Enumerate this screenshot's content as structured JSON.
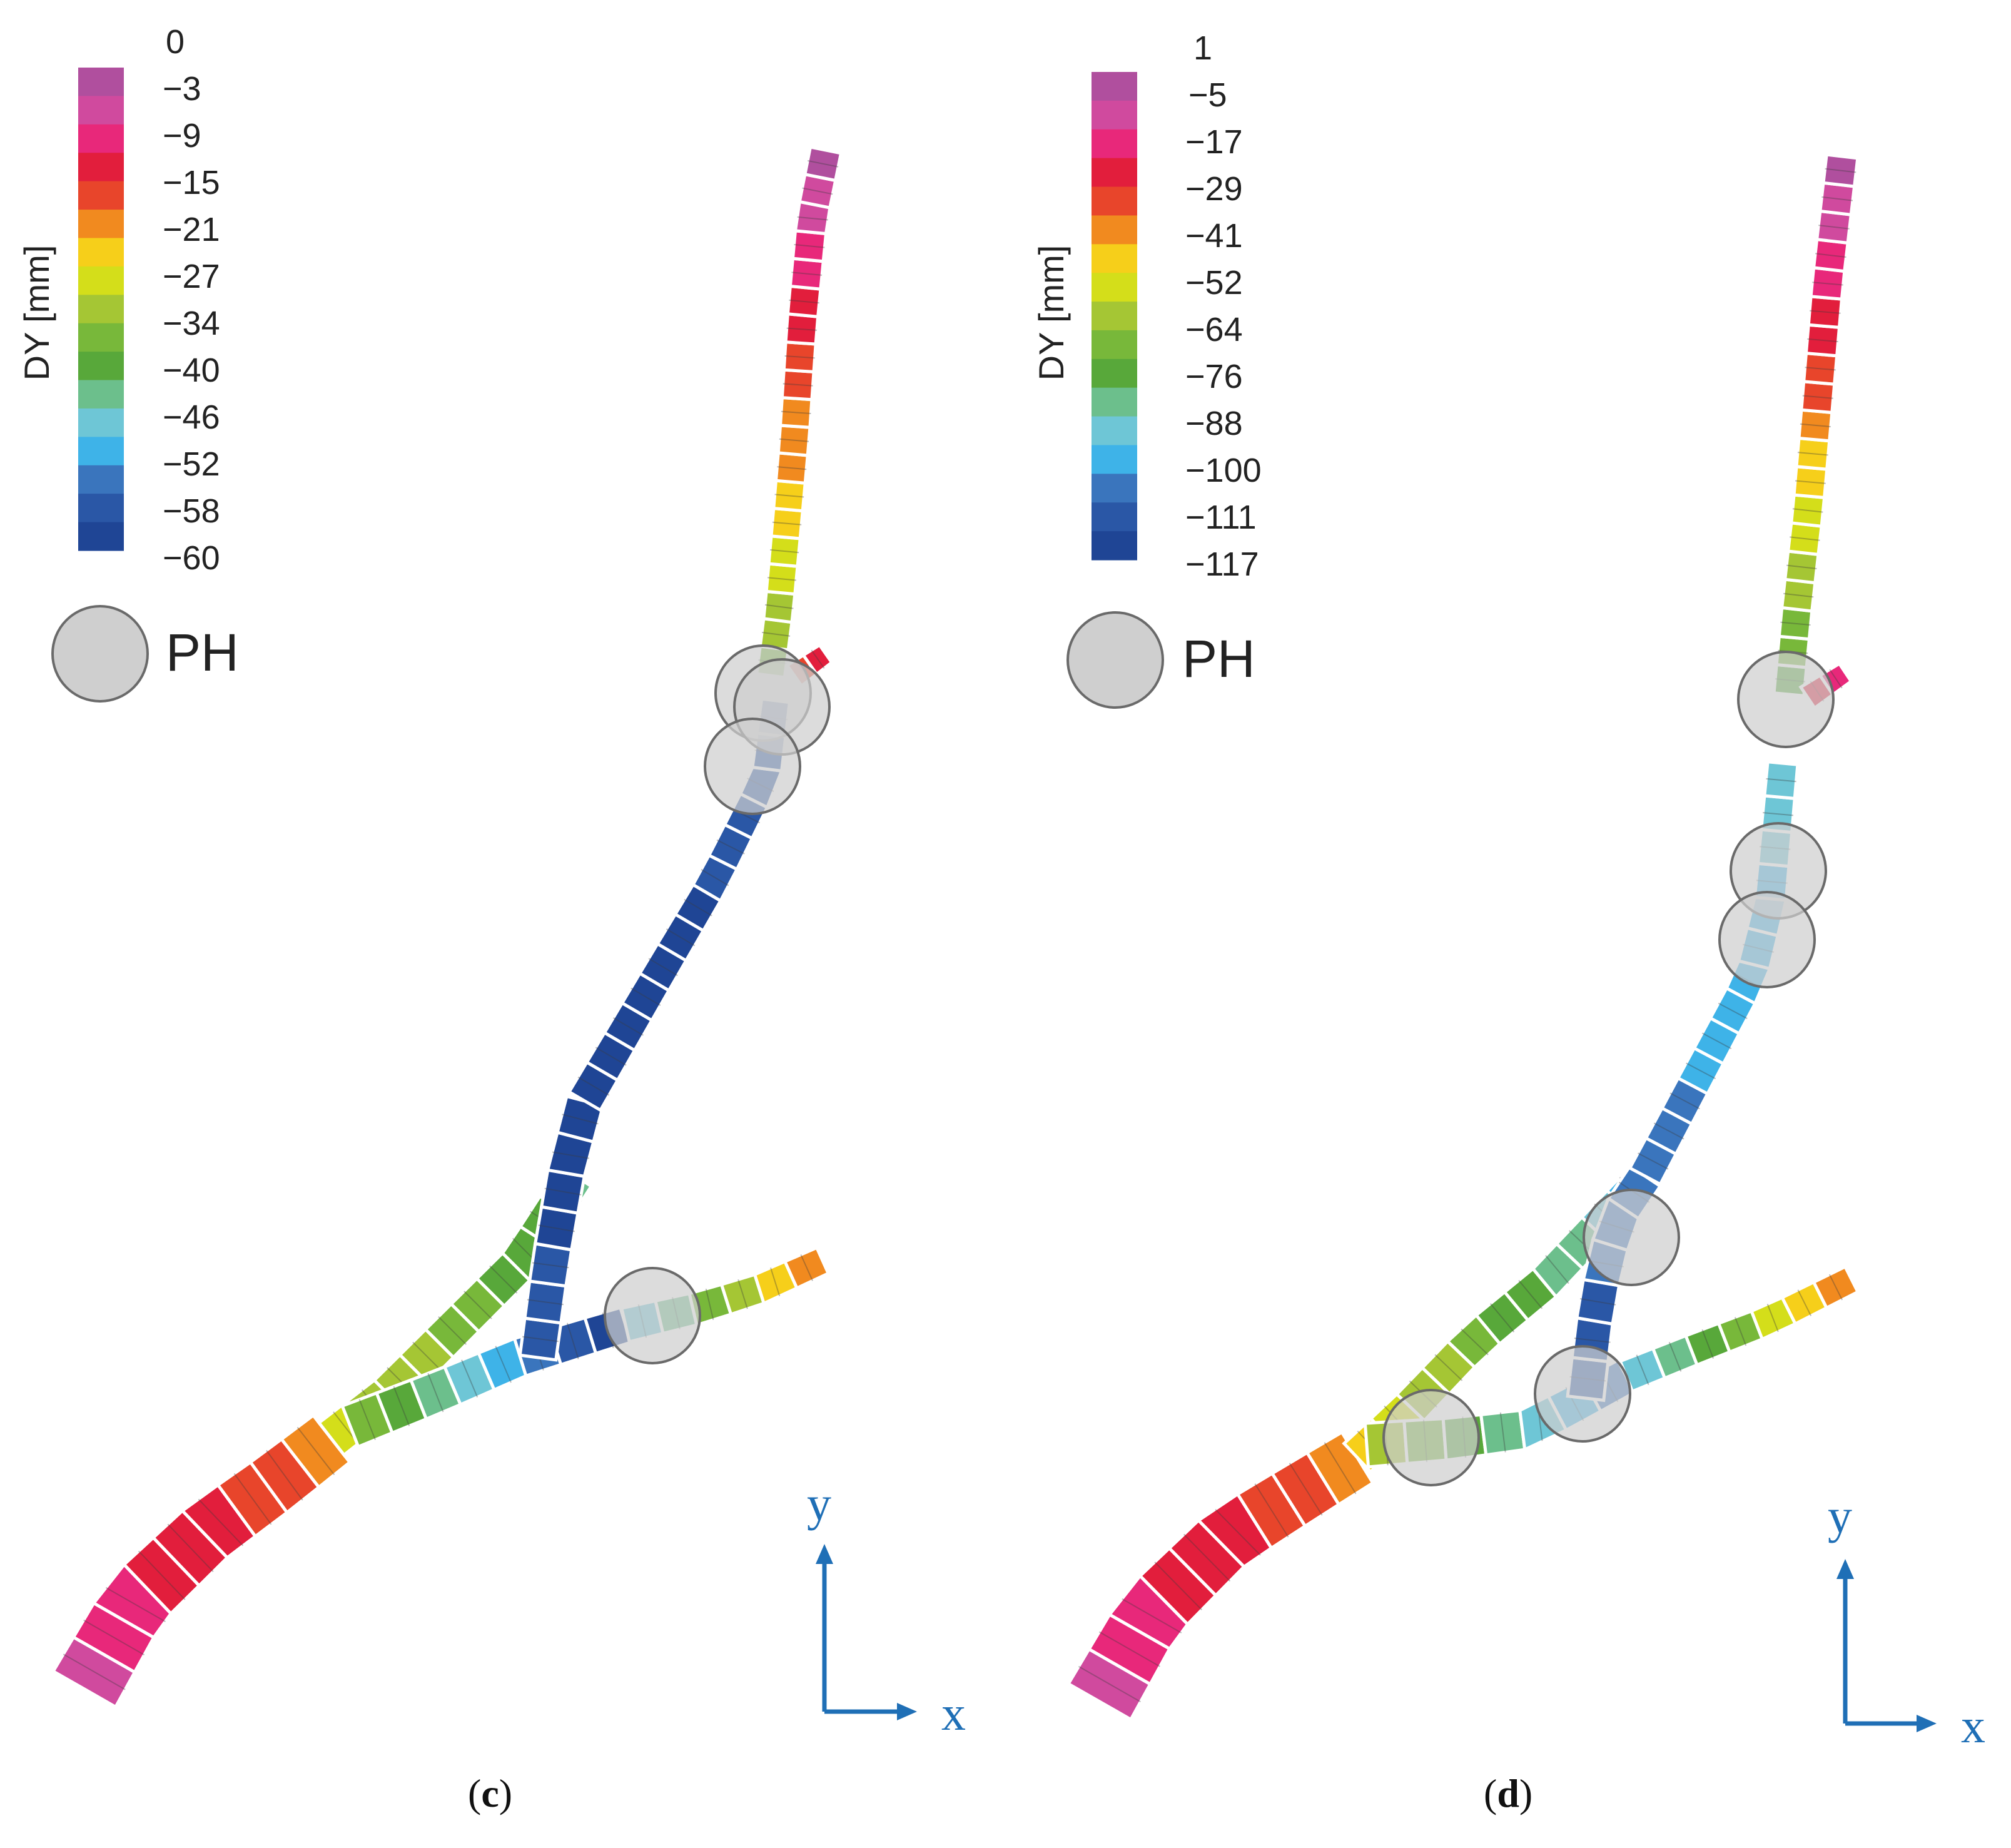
{
  "colors": {
    "scale": [
      "#b04f9e",
      "#d04a9e",
      "#e8287a",
      "#e21e3c",
      "#e8452b",
      "#f18a1f",
      "#f6cf1a",
      "#d4de1a",
      "#a5c634",
      "#78b83a",
      "#58a83a",
      "#6cbf8c",
      "#6ec6d6",
      "#3eb3e8",
      "#3a75bd",
      "#2a57a6",
      "#1f4595"
    ],
    "marker_fill": "#cfcfcf",
    "marker_stroke": "#6a6a6a",
    "axis": "#1f6fb6",
    "separator": "#ffffff"
  },
  "panels": [
    {
      "subcaption_letter": "c",
      "colorbar_title": "DY [mm]",
      "colorbar_ticks": [
        "0",
        "−3",
        "−9",
        "−15",
        "−21",
        "−27",
        "−34",
        "−40",
        "−46",
        "−52",
        "−58",
        "−60"
      ],
      "legend_marker_label": "PH",
      "axis_y_label": "y",
      "axis_x_label": "x",
      "plastic_hinges": 4
    },
    {
      "subcaption_letter": "d",
      "colorbar_title": "DY [mm]",
      "colorbar_ticks": [
        "1",
        "−5",
        "−17",
        "−29",
        "−41",
        "−52",
        "−64",
        "−76",
        "−88",
        "−100",
        "−111",
        "−117"
      ],
      "legend_marker_label": "PH",
      "axis_y_label": "y",
      "axis_x_label": "x",
      "plastic_hinges": 6
    }
  ]
}
